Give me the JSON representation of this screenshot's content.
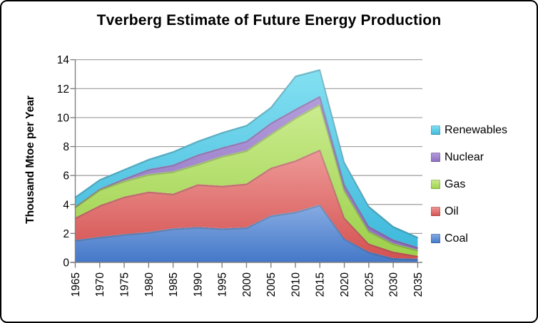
{
  "frame": {
    "background": "#ffffff",
    "border_color": "#000000"
  },
  "chart_data": {
    "type": "area",
    "stacked": true,
    "title": "Tverberg Estimate of Future Energy Production",
    "xlabel": "",
    "ylabel": "Thousand Mtoe per Year",
    "ylim": [
      0,
      14
    ],
    "y_ticks": [
      0,
      2,
      4,
      6,
      8,
      10,
      12,
      14
    ],
    "grid": true,
    "legend_position": "right",
    "categories": [
      "1965",
      "1970",
      "1975",
      "1980",
      "1985",
      "1990",
      "1995",
      "2000",
      "2005",
      "2010",
      "2015",
      "2020",
      "2025",
      "2030",
      "2035"
    ],
    "series": [
      {
        "name": "Coal",
        "color_light": "#87ACE3",
        "color_dark": "#4478C8",
        "values": [
          1.55,
          1.77,
          1.95,
          2.1,
          2.35,
          2.45,
          2.35,
          2.43,
          3.25,
          3.5,
          3.99,
          1.65,
          0.74,
          0.3,
          0.25
        ]
      },
      {
        "name": "Oil",
        "color_light": "#EE9A98",
        "color_dark": "#D45251",
        "values": [
          1.55,
          2.18,
          2.6,
          2.8,
          2.4,
          2.95,
          2.95,
          3.02,
          3.3,
          3.55,
          3.81,
          1.45,
          0.57,
          0.45,
          0.21
        ]
      },
      {
        "name": "Gas",
        "color_light": "#CBEC8F",
        "color_dark": "#9CD04A",
        "values": [
          0.75,
          1.1,
          1.1,
          1.2,
          1.55,
          1.4,
          2.05,
          2.3,
          2.35,
          2.95,
          3.15,
          1.9,
          0.87,
          0.56,
          0.41
        ]
      },
      {
        "name": "Nuclear",
        "color_light": "#B49DDB",
        "color_dark": "#8D6EC0",
        "values": [
          0.03,
          0.05,
          0.15,
          0.35,
          0.45,
          0.65,
          0.6,
          0.65,
          0.75,
          0.6,
          0.55,
          0.4,
          0.33,
          0.28,
          0.2
        ]
      },
      {
        "name": "Renewables",
        "color_light": "#84E0F2",
        "color_dark": "#3FB9DC",
        "values": [
          0.67,
          0.65,
          0.65,
          0.7,
          0.93,
          0.95,
          1.05,
          1.1,
          1.1,
          2.3,
          1.85,
          1.55,
          1.4,
          0.92,
          0.7
        ]
      }
    ],
    "legend_entries": [
      "Renewables",
      "Nuclear",
      "Gas",
      "Oil",
      "Coal"
    ],
    "colors": {
      "gridline": "#9C9C9C",
      "axis": "#808080",
      "text": "#000000"
    }
  }
}
